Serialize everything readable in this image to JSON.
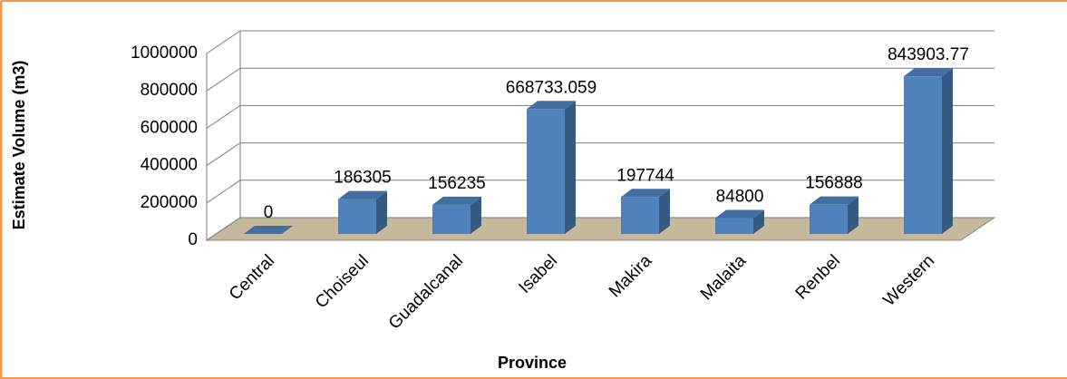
{
  "chart_data": {
    "type": "bar",
    "x_label": "Province",
    "y_label": "Estimate Volume (m3)",
    "categories": [
      "Central",
      "Choiseul",
      "Guadalcanal",
      "Isabel",
      "Makira",
      "Malaita",
      "Renbel",
      "Western"
    ],
    "values": [
      0,
      186305,
      156235,
      668733.059,
      197744,
      84800,
      156888,
      843903.77
    ],
    "color": "#4f81bd",
    "ylim": [
      0,
      1000000
    ],
    "yticks": [
      0,
      200000,
      400000,
      600000,
      800000,
      1000000
    ],
    "grid": true
  }
}
